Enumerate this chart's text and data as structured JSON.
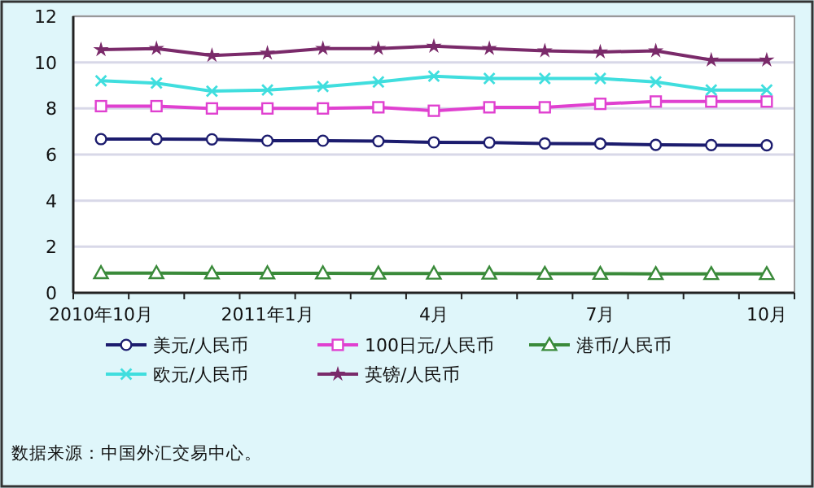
{
  "chart_data": {
    "type": "line",
    "categories": [
      "2010年10月",
      null,
      null,
      "2011年1月",
      null,
      null,
      "4月",
      null,
      null,
      "7月",
      null,
      null,
      "10月"
    ],
    "series": [
      {
        "name": "美元/人民币",
        "color": "#1c1c6e",
        "marker": "circle",
        "values": [
          6.67,
          6.67,
          6.66,
          6.6,
          6.6,
          6.58,
          6.53,
          6.52,
          6.48,
          6.47,
          6.42,
          6.41,
          6.4
        ]
      },
      {
        "name": "100日元/人民币",
        "color": "#e040d0",
        "marker": "square",
        "values": [
          8.1,
          8.1,
          8.0,
          8.0,
          8.0,
          8.05,
          7.9,
          8.05,
          8.05,
          8.2,
          8.3,
          8.3,
          8.3
        ]
      },
      {
        "name": "港币/人民币",
        "color": "#3a8a3a",
        "marker": "triangle",
        "values": [
          0.86,
          0.86,
          0.85,
          0.85,
          0.85,
          0.84,
          0.84,
          0.84,
          0.83,
          0.83,
          0.82,
          0.82,
          0.82
        ]
      },
      {
        "name": "欧元/人民币",
        "color": "#40dede",
        "marker": "cross",
        "values": [
          9.2,
          9.1,
          8.75,
          8.8,
          8.95,
          9.15,
          9.4,
          9.3,
          9.3,
          9.3,
          9.15,
          8.8,
          8.8
        ]
      },
      {
        "name": "英镑/人民币",
        "color": "#7a2a6a",
        "marker": "star",
        "values": [
          10.55,
          10.6,
          10.3,
          10.4,
          10.6,
          10.6,
          10.7,
          10.6,
          10.5,
          10.45,
          10.5,
          10.1,
          10.1
        ]
      }
    ],
    "ylim": [
      0,
      12
    ],
    "yticks": [
      0,
      2,
      4,
      6,
      8,
      10,
      12
    ],
    "grid": "y",
    "legend": "bottom",
    "annotations": [
      "数据来源：中国外汇交易中心。"
    ]
  }
}
